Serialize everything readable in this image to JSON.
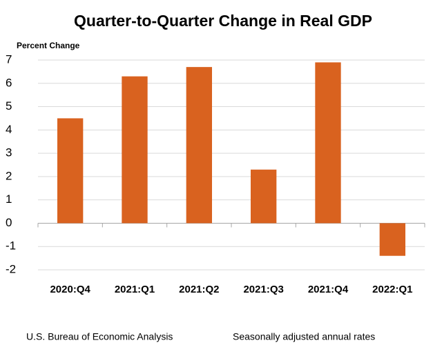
{
  "chart_data": {
    "type": "bar",
    "title": "Quarter-to-Quarter Change in Real GDP",
    "y_label": "Percent Change",
    "categories": [
      "2020:Q4",
      "2021:Q1",
      "2021:Q2",
      "2021:Q3",
      "2021:Q4",
      "2022:Q1"
    ],
    "values": [
      4.5,
      6.3,
      6.7,
      2.3,
      6.9,
      -1.4
    ],
    "color": "#d9621f",
    "ylim": [
      -2,
      7
    ],
    "yticks": [
      -2,
      -1,
      0,
      1,
      2,
      3,
      4,
      5,
      6,
      7
    ],
    "grid": true,
    "source": "U.S. Bureau of Economic Analysis",
    "note": "Seasonally adjusted annual rates"
  }
}
